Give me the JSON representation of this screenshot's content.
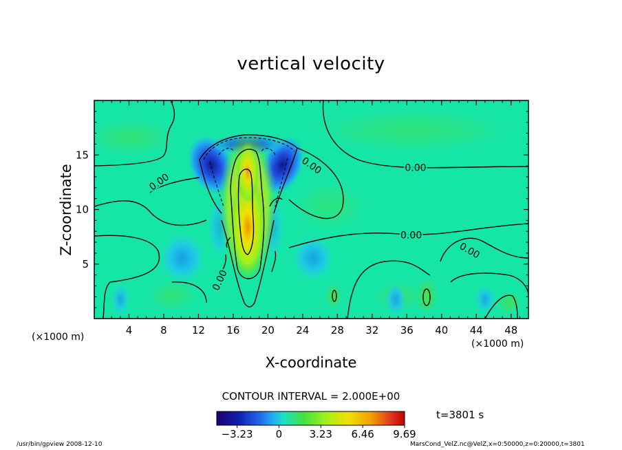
{
  "chart_data": {
    "type": "heatmap",
    "title": "vertical velocity",
    "xlabel": "X-coordinate",
    "ylabel": "Z-coordinate",
    "x_unit_label_left": "(×1000 m)",
    "x_unit_label_right": "(×1000 m)",
    "xlim": [
      0,
      50
    ],
    "ylim": [
      0,
      20
    ],
    "x_ticks": [
      4,
      8,
      12,
      16,
      20,
      24,
      28,
      32,
      36,
      40,
      44,
      48
    ],
    "y_ticks": [
      5,
      10,
      15
    ],
    "contour_interval_text": "CONTOUR INTERVAL = 2.000E+00",
    "time_text": "t=3801 s",
    "colorbar": {
      "min": -4.8,
      "max": 9.69,
      "ticks": [
        -3.23,
        0,
        3.23,
        6.46,
        9.69
      ],
      "tick_labels": [
        "−3.23",
        "0",
        "3.23",
        "6.46",
        "9.69"
      ]
    },
    "contour_labels": [
      {
        "text": "0.00",
        "x": 7.5,
        "z": 12.5,
        "angle": -35
      },
      {
        "text": "0.00",
        "x": 25.0,
        "z": 14.0,
        "angle": 35
      },
      {
        "text": "0.00",
        "x": 37.0,
        "z": 13.8,
        "angle": 0
      },
      {
        "text": "0.00",
        "x": 36.5,
        "z": 7.6,
        "angle": 0
      },
      {
        "text": "0.00",
        "x": 43.2,
        "z": 6.2,
        "angle": 30
      },
      {
        "text": "0.00",
        "x": 14.5,
        "z": 3.5,
        "angle": -65
      }
    ],
    "features": {
      "updraft_core": {
        "x": 17.6,
        "z": 8.0,
        "peak": 9.69
      },
      "downdraft_left": {
        "x": 14.8,
        "z": 14.0,
        "min": -3.23
      },
      "downdraft_right": {
        "x": 21.0,
        "z": 14.0,
        "min": -3.23
      }
    }
  },
  "colors": {
    "background_field": "#15e6a6",
    "contour_line": "#000000",
    "colormap": [
      "#200070",
      "#1020b0",
      "#2060e8",
      "#20b0f0",
      "#20e0c0",
      "#40e040",
      "#a0f020",
      "#f0e000",
      "#f0a000",
      "#e04020",
      "#c00000"
    ]
  },
  "footer": {
    "left": "/usr/bin/gpview   2008-12-10",
    "right": "MarsCond_VelZ.nc@VelZ,x=0:50000,z=0:20000,t=3801"
  }
}
